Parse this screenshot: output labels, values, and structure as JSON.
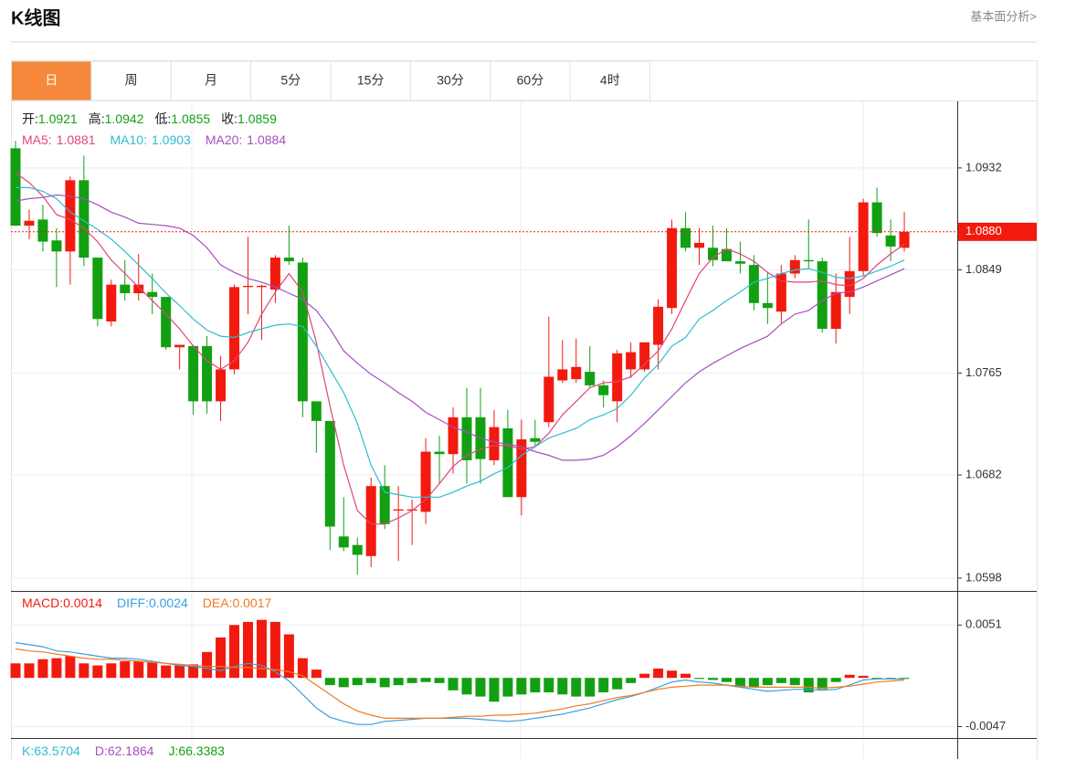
{
  "header": {
    "title": "K线图",
    "link": "基本面分析>"
  },
  "tabs": [
    "日",
    "周",
    "月",
    "5分",
    "15分",
    "30分",
    "60分",
    "4时"
  ],
  "active_tab": 0,
  "chart_data": [
    {
      "type": "candlestick",
      "ohlc_labels": [
        {
          "label": "开:",
          "value": 1.0921
        },
        {
          "label": "高:",
          "value": 1.0942
        },
        {
          "label": "低:",
          "value": 1.0855
        },
        {
          "label": "收:",
          "value": 1.0859
        }
      ],
      "up_color": "#f21a0e",
      "down_color": "#12a012",
      "open": [
        1.0948,
        1.0885,
        1.089,
        1.0873,
        1.0864,
        1.0922,
        1.0859,
        1.0807,
        1.0837,
        1.083,
        1.0831,
        1.0827,
        1.0786,
        1.0787,
        1.0787,
        1.0742,
        1.0768,
        1.0835,
        1.0835,
        1.0833,
        1.0859,
        1.0855,
        1.0742,
        1.0726,
        1.0632,
        1.0625,
        1.0616,
        1.0673,
        1.0653,
        1.0653,
        1.0652,
        1.0701,
        1.0699,
        1.0729,
        1.0729,
        1.0694,
        1.072,
        1.0664,
        1.0712,
        1.0725,
        1.0759,
        1.076,
        1.0766,
        1.0755,
        1.0742,
        1.0768,
        1.0768,
        1.0788,
        1.0818,
        1.0883,
        1.0867,
        1.0867,
        1.0866,
        1.0856,
        1.0853,
        1.0822,
        1.0815,
        1.0846,
        1.0857,
        1.0856,
        1.0801,
        1.0827,
        1.0848,
        1.0904,
        1.0877,
        1.0867
      ],
      "high": [
        1.0954,
        1.0898,
        1.0902,
        1.0883,
        1.0925,
        1.0942,
        1.0859,
        1.0841,
        1.0857,
        1.0862,
        1.0846,
        1.0827,
        1.0788,
        1.0788,
        1.0795,
        1.0779,
        1.0837,
        1.0876,
        1.0837,
        1.0861,
        1.0885,
        1.0859,
        1.0742,
        1.0726,
        1.0664,
        1.0631,
        1.068,
        1.069,
        1.0673,
        1.0662,
        1.0712,
        1.0714,
        1.0737,
        1.0753,
        1.0753,
        1.0735,
        1.0735,
        1.0727,
        1.0727,
        1.0811,
        1.0792,
        1.0793,
        1.0787,
        1.0759,
        1.0784,
        1.079,
        1.079,
        1.0825,
        1.089,
        1.0896,
        1.0883,
        1.0885,
        1.0883,
        1.0872,
        1.0861,
        1.0847,
        1.0853,
        1.0861,
        1.089,
        1.0859,
        1.0846,
        1.0876,
        1.0907,
        1.0916,
        1.089,
        1.0896
      ],
      "low": [
        1.0885,
        1.0874,
        1.0864,
        1.0835,
        1.0837,
        1.0852,
        1.0803,
        1.0803,
        1.0824,
        1.0824,
        1.0813,
        1.0784,
        1.0768,
        1.0731,
        1.0732,
        1.0726,
        1.0764,
        1.0813,
        1.0792,
        1.0822,
        1.0853,
        1.0729,
        1.07,
        1.0621,
        1.062,
        1.0601,
        1.0607,
        1.0638,
        1.0612,
        1.0625,
        1.0642,
        1.0675,
        1.0683,
        1.0675,
        1.0675,
        1.069,
        1.0664,
        1.0649,
        1.0705,
        1.0721,
        1.0757,
        1.0757,
        1.0753,
        1.0737,
        1.0725,
        1.0761,
        1.0766,
        1.0768,
        1.0813,
        1.0864,
        1.0853,
        1.0852,
        1.0856,
        1.0846,
        1.0816,
        1.0805,
        1.0805,
        1.0842,
        1.085,
        1.0798,
        1.0789,
        1.0813,
        1.0844,
        1.0876,
        1.0856,
        1.0864
      ],
      "close": [
        1.0885,
        1.0889,
        1.0872,
        1.0864,
        1.0922,
        1.0859,
        1.0809,
        1.0837,
        1.083,
        1.0837,
        1.0827,
        1.0786,
        1.0788,
        1.0742,
        1.0742,
        1.0768,
        1.0835,
        1.0836,
        1.0836,
        1.0859,
        1.0856,
        1.0742,
        1.0726,
        1.064,
        1.0623,
        1.0617,
        1.0673,
        1.0642,
        1.0654,
        1.0654,
        1.0701,
        1.0699,
        1.0729,
        1.0694,
        1.0695,
        1.0721,
        1.0664,
        1.0711,
        1.0709,
        1.0762,
        1.0768,
        1.077,
        1.0755,
        1.0747,
        1.0781,
        1.0782,
        1.079,
        1.0819,
        1.0883,
        1.0867,
        1.0871,
        1.0857,
        1.0856,
        1.0854,
        1.0822,
        1.0818,
        1.0846,
        1.0857,
        1.0856,
        1.0801,
        1.0831,
        1.0848,
        1.0904,
        1.0879,
        1.0868,
        1.088
      ],
      "series": [
        {
          "name": "MA5:",
          "color": "#e0457b",
          "value": 1.0881,
          "values": [
            1.0928,
            1.092,
            1.0909,
            1.0894,
            1.089,
            1.0883,
            1.0872,
            1.0857,
            1.0846,
            1.0835,
            1.0824,
            1.0813,
            1.0801,
            1.0787,
            1.0775,
            1.0768,
            1.0775,
            1.079,
            1.0813,
            1.0831,
            1.0846,
            1.0831,
            1.079,
            1.0738,
            1.069,
            1.0653,
            1.0642,
            1.0642,
            1.0647,
            1.0653,
            1.0662,
            1.0675,
            1.0689,
            1.0698,
            1.0703,
            1.0706,
            1.0706,
            1.0703,
            1.0705,
            1.0716,
            1.0731,
            1.0742,
            1.0753,
            1.0757,
            1.0758,
            1.0762,
            1.0772,
            1.0783,
            1.0801,
            1.0824,
            1.0846,
            1.0859,
            1.0866,
            1.0862,
            1.0856,
            1.0847,
            1.084,
            1.0839,
            1.0839,
            1.084,
            1.0837,
            1.0836,
            1.0842,
            1.0853,
            1.0862,
            1.087
          ]
        },
        {
          "name": "MA10:",
          "color": "#2fbcd1",
          "value": 1.0903,
          "values": [
            1.0916,
            1.0916,
            1.0913,
            1.0907,
            1.0896,
            1.0889,
            1.0882,
            1.0874,
            1.0864,
            1.0853,
            1.0842,
            1.083,
            1.082,
            1.0809,
            1.08,
            1.0795,
            1.0794,
            1.0798,
            1.0801,
            1.0804,
            1.0805,
            1.0803,
            1.0787,
            1.0768,
            1.0749,
            1.0724,
            1.069,
            1.0668,
            1.0666,
            1.0664,
            1.0664,
            1.0664,
            1.0668,
            1.0673,
            1.0677,
            1.0683,
            1.0688,
            1.0698,
            1.0705,
            1.0712,
            1.0716,
            1.072,
            1.0727,
            1.0731,
            1.0736,
            1.0747,
            1.0761,
            1.0772,
            1.0787,
            1.0794,
            1.0809,
            1.0816,
            1.0824,
            1.0831,
            1.0839,
            1.0842,
            1.0846,
            1.0849,
            1.085,
            1.0847,
            1.0843,
            1.0842,
            1.0844,
            1.0848,
            1.0852,
            1.0857
          ]
        },
        {
          "name": "MA20:",
          "color": "#a64fc0",
          "value": 1.0884,
          "values": [
            1.0905,
            1.0907,
            1.0908,
            1.091,
            1.0909,
            1.0907,
            1.0902,
            1.0896,
            1.0892,
            1.0887,
            1.0886,
            1.0885,
            1.0883,
            1.0877,
            1.0867,
            1.0853,
            1.0847,
            1.0842,
            1.0839,
            1.0835,
            1.083,
            1.0825,
            1.0816,
            1.0801,
            1.0783,
            1.0773,
            1.0764,
            1.0757,
            1.0749,
            1.0742,
            1.0733,
            1.0727,
            1.0721,
            1.0717,
            1.0712,
            1.0709,
            1.0707,
            1.0705,
            1.0701,
            1.0698,
            1.0694,
            1.0694,
            1.0695,
            1.0698,
            1.0705,
            1.0714,
            1.0724,
            1.0735,
            1.0746,
            1.0757,
            1.0766,
            1.0773,
            1.0779,
            1.0785,
            1.079,
            1.0795,
            1.0805,
            1.0813,
            1.0816,
            1.0824,
            1.083,
            1.0831,
            1.0835,
            1.084,
            1.0845,
            1.085
          ]
        }
      ],
      "ylim": [
        1.05876,
        1.09862
      ],
      "yticks": [
        1.0598,
        1.0682,
        1.0765,
        1.0849,
        1.0932
      ],
      "last_price": {
        "value": 1.088,
        "label": "1.0880"
      },
      "grid": true
    },
    {
      "type": "macd",
      "bars": {
        "name": "MACD:",
        "color": "#f21a0e",
        "down_color": "#12a012",
        "value": 0.0014,
        "values": [
          0.0014,
          0.0014,
          0.0018,
          0.0019,
          0.0021,
          0.0014,
          0.0012,
          0.0014,
          0.0016,
          0.0016,
          0.0015,
          0.0012,
          0.0012,
          0.0013,
          0.0025,
          0.0039,
          0.0051,
          0.0054,
          0.0056,
          0.0054,
          0.0042,
          0.0019,
          0.0008,
          -0.0007,
          -0.0009,
          -0.0007,
          -0.0005,
          -0.0009,
          -0.0007,
          -0.0005,
          -0.0004,
          -0.0005,
          -0.0012,
          -0.0016,
          -0.0018,
          -0.0023,
          -0.0018,
          -0.0016,
          -0.0014,
          -0.0014,
          -0.0016,
          -0.0018,
          -0.0018,
          -0.0014,
          -0.0011,
          -0.0005,
          0.0004,
          0.0009,
          0.0007,
          0.0004,
          -0.0001,
          -0.0002,
          -0.0004,
          -0.0009,
          -0.0009,
          -0.0007,
          -0.0005,
          -0.0007,
          -0.0014,
          -0.0011,
          -0.0004,
          0.0003,
          0.0002,
          -0.0001,
          -0.0001,
          -0.0001
        ]
      },
      "series": [
        {
          "name": "DIFF:",
          "color": "#3a9fe0",
          "value": 0.0024,
          "values": [
            0.0034,
            0.0032,
            0.003,
            0.0026,
            0.0025,
            0.0023,
            0.0021,
            0.0019,
            0.0019,
            0.0018,
            0.0016,
            0.0014,
            0.0012,
            0.0011,
            0.0009,
            0.0007,
            0.0011,
            0.0014,
            0.0012,
            0.0006,
            -0.0003,
            -0.0016,
            -0.0029,
            -0.0038,
            -0.0042,
            -0.0045,
            -0.0045,
            -0.0042,
            -0.0041,
            -0.004,
            -0.0039,
            -0.0039,
            -0.0039,
            -0.0039,
            -0.004,
            -0.0041,
            -0.0042,
            -0.0041,
            -0.0039,
            -0.0037,
            -0.0035,
            -0.0032,
            -0.0029,
            -0.0025,
            -0.0021,
            -0.0018,
            -0.0014,
            -0.0009,
            -0.0004,
            -0.0002,
            -0.0004,
            -0.0005,
            -0.0007,
            -0.0009,
            -0.0011,
            -0.0013,
            -0.0012,
            -0.0011,
            -0.0011,
            -0.0012,
            -0.0011,
            -0.0007,
            -0.0002,
            -0.0001,
            -0.0001,
            -0.0001
          ]
        },
        {
          "name": "DEA:",
          "color": "#f07b20",
          "value": 0.0017,
          "values": [
            0.0028,
            0.0026,
            0.0025,
            0.0023,
            0.0021,
            0.0019,
            0.0018,
            0.0018,
            0.0017,
            0.0016,
            0.0015,
            0.0014,
            0.0013,
            0.0012,
            0.0011,
            0.0011,
            0.001,
            0.001,
            0.0009,
            0.0008,
            0.0006,
            0.0002,
            -0.0007,
            -0.0016,
            -0.0025,
            -0.0032,
            -0.0036,
            -0.0039,
            -0.0039,
            -0.0039,
            -0.0039,
            -0.0039,
            -0.0038,
            -0.0037,
            -0.0037,
            -0.0036,
            -0.0036,
            -0.0035,
            -0.0034,
            -0.0032,
            -0.003,
            -0.0027,
            -0.0025,
            -0.0022,
            -0.0019,
            -0.0017,
            -0.0014,
            -0.0011,
            -0.0009,
            -0.0008,
            -0.0007,
            -0.0007,
            -0.0007,
            -0.0008,
            -0.0009,
            -0.0009,
            -0.0009,
            -0.0009,
            -0.0009,
            -0.001,
            -0.0009,
            -0.0008,
            -0.0006,
            -0.0004,
            -0.0003,
            -0.0002
          ]
        }
      ],
      "ylim": [
        -0.0058,
        0.0083
      ],
      "yticks": [
        -0.0047,
        0.0051
      ],
      "grid": true
    }
  ],
  "kdj": [
    {
      "label": "K:",
      "value": 63.5704,
      "color": "#2fbcd1"
    },
    {
      "label": "D:",
      "value": 62.1864,
      "color": "#a64fc0"
    },
    {
      "label": "J:",
      "value": 66.3383,
      "color": "#12a012"
    }
  ]
}
